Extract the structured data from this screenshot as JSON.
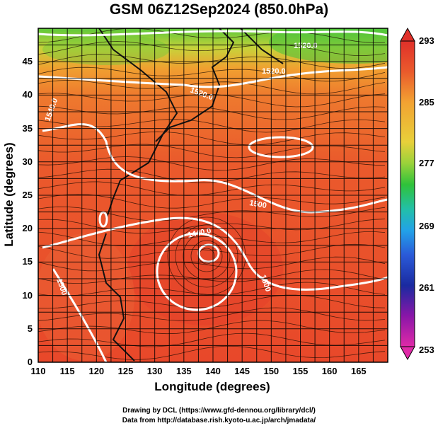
{
  "title": "GSM 06Z12Sep2024 (850.0hPa)",
  "xlabel": "Longitude (degrees)",
  "ylabel": "Latitude  (degrees)",
  "credits": [
    "Drawing by DCL (https://www.gfd-dennou.org/library/dcl/)",
    "Data from http://database.rish.kyoto-u.ac.jp/arch/jmadata/"
  ],
  "map": {
    "lon_range": [
      110,
      170
    ],
    "lat_range": [
      0,
      50
    ],
    "lon_ticks": [
      "110",
      "115",
      "120",
      "125",
      "130",
      "135",
      "140",
      "145",
      "150",
      "155",
      "160",
      "165"
    ],
    "lat_ticks": [
      "0",
      "5",
      "10",
      "15",
      "20",
      "25",
      "30",
      "35",
      "40",
      "45"
    ],
    "contour_labels": [
      "1520.0",
      "1520.0",
      "1540.0",
      "1520.0",
      "1440.0",
      "1500",
      "1500",
      "1520",
      "1500"
    ]
  },
  "colorbar": {
    "ticks": [
      "293",
      "285",
      "277",
      "269",
      "261",
      "253"
    ],
    "colors": [
      "#e0302a",
      "#ee6a2b",
      "#f2a232",
      "#e8d03a",
      "#9ad23a",
      "#2fc23a",
      "#22c0a8",
      "#22a2e8",
      "#2a5ad8",
      "#1a2aa0",
      "#6a16a8",
      "#c41ea0",
      "#e02aa8"
    ]
  }
}
